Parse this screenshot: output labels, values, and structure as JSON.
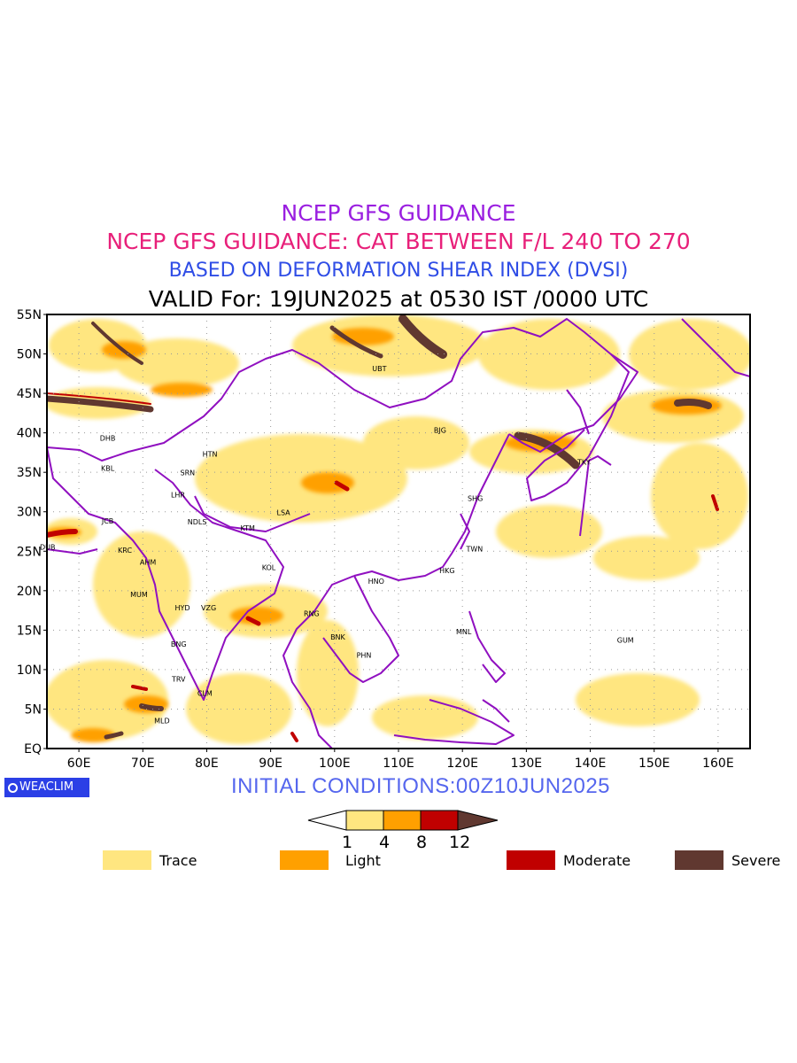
{
  "titles": {
    "line1": "NCEP GFS GUIDANCE",
    "line2": "NCEP GFS GUIDANCE: CAT BETWEEN F/L 240 TO 270",
    "line3": "BASED ON DEFORMATION SHEAR INDEX (DVSI)",
    "line4": "VALID For: 19JUN2025 at 0530 IST /0000 UTC"
  },
  "colors": {
    "trace": "#ffe680",
    "light": "#ffa000",
    "moderate": "#c00000",
    "severe": "#603830",
    "boundary": "#9010c0",
    "title1": "#9a1fe0",
    "title2": "#e8207a",
    "title3": "#2f4de6",
    "initcond": "#5566ee",
    "logo": "#2b3fe6"
  },
  "map": {
    "lat_labels": [
      "55N",
      "50N",
      "45N",
      "40N",
      "35N",
      "30N",
      "25N",
      "20N",
      "15N",
      "10N",
      "5N",
      "EQ"
    ],
    "lon_labels": [
      "60E",
      "70E",
      "80E",
      "90E",
      "100E",
      "110E",
      "120E",
      "130E",
      "140E",
      "150E",
      "160E"
    ],
    "lat_range": [
      0,
      55
    ],
    "lon_range": [
      55,
      165
    ],
    "grid": "dotted",
    "stations": [
      {
        "code": "UBT",
        "lon": 107,
        "lat": 47.8
      },
      {
        "code": "BJG",
        "lon": 116.5,
        "lat": 40
      },
      {
        "code": "DHB",
        "lon": 64.5,
        "lat": 39
      },
      {
        "code": "HTN",
        "lon": 80.5,
        "lat": 37
      },
      {
        "code": "KBL",
        "lon": 64.5,
        "lat": 35.2
      },
      {
        "code": "SRN",
        "lon": 77,
        "lat": 34.6
      },
      {
        "code": "LHR",
        "lon": 75.5,
        "lat": 31.8
      },
      {
        "code": "TKY",
        "lon": 139,
        "lat": 36
      },
      {
        "code": "SHG",
        "lon": 122,
        "lat": 31.4
      },
      {
        "code": "LSA",
        "lon": 92,
        "lat": 29.6
      },
      {
        "code": "JCB",
        "lon": 64.5,
        "lat": 28.5
      },
      {
        "code": "NDLS",
        "lon": 78.5,
        "lat": 28.4
      },
      {
        "code": "KTM",
        "lon": 86.4,
        "lat": 27.6
      },
      {
        "code": "DUB",
        "lon": 55.1,
        "lat": 25.2
      },
      {
        "code": "KRC",
        "lon": 67.2,
        "lat": 24.8
      },
      {
        "code": "TWN",
        "lon": 121.9,
        "lat": 25
      },
      {
        "code": "AHM",
        "lon": 70.8,
        "lat": 23.3
      },
      {
        "code": "KOL",
        "lon": 89.7,
        "lat": 22.6
      },
      {
        "code": "HKG",
        "lon": 117.6,
        "lat": 22.2
      },
      {
        "code": "HNO",
        "lon": 106.5,
        "lat": 20.9
      },
      {
        "code": "MUM",
        "lon": 69.4,
        "lat": 19.2
      },
      {
        "code": "HYD",
        "lon": 76.2,
        "lat": 17.5
      },
      {
        "code": "VZG",
        "lon": 80.3,
        "lat": 17.5
      },
      {
        "code": "RNG",
        "lon": 96.4,
        "lat": 16.8
      },
      {
        "code": "MNL",
        "lon": 120.2,
        "lat": 14.5
      },
      {
        "code": "GUM",
        "lon": 145.5,
        "lat": 13.4
      },
      {
        "code": "BNK",
        "lon": 100.5,
        "lat": 13.8
      },
      {
        "code": "BNG",
        "lon": 75.6,
        "lat": 12.9
      },
      {
        "code": "PHN",
        "lon": 104.6,
        "lat": 11.5
      },
      {
        "code": "TRV",
        "lon": 75.6,
        "lat": 8.5
      },
      {
        "code": "CLM",
        "lon": 79.7,
        "lat": 6.7
      },
      {
        "code": "MLD",
        "lon": 73,
        "lat": 3.2
      }
    ]
  },
  "logo": {
    "label": "WEACLIM"
  },
  "initial_conditions": "INITIAL CONDITIONS:00Z10JUN2025",
  "colorbar": {
    "thresholds": [
      "1",
      "4",
      "8",
      "12"
    ]
  },
  "legend": [
    {
      "label": "Trace",
      "color": "#ffe680"
    },
    {
      "label": "Light",
      "color": "#ffa000"
    },
    {
      "label": "Moderate",
      "color": "#c00000"
    },
    {
      "label": "Severe",
      "color": "#603830"
    }
  ]
}
